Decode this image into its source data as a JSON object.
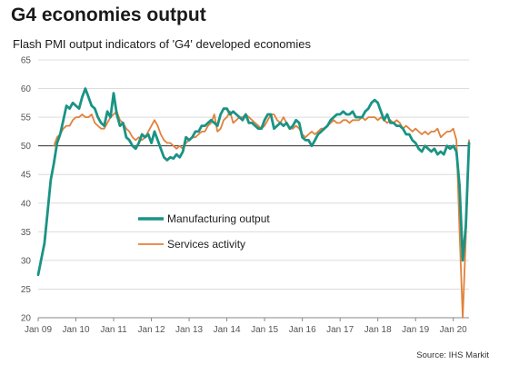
{
  "title": "G4 economies output",
  "subtitle": "Flash PMI output indicators of 'G4' developed economies",
  "source": "Source: IHS Markit",
  "chart_data": {
    "type": "line",
    "title": "G4 economies output",
    "subtitle": "Flash PMI output indicators of 'G4' developed economies",
    "ylim": [
      20,
      65
    ],
    "yticks": [
      20,
      25,
      30,
      35,
      40,
      45,
      50,
      55,
      60,
      65
    ],
    "xlim": [
      "Jan 09",
      "Jun 20"
    ],
    "xticks": [
      "Jan 09",
      "Jan 10",
      "Jan 11",
      "Jan 12",
      "Jan 13",
      "Jan 14",
      "Jan 15",
      "Jan 16",
      "Jan 17",
      "Jan 18",
      "Jan 19",
      "Jan 20"
    ],
    "reference_line": 50,
    "legend_position": "center",
    "grid": "horizontal",
    "series": [
      {
        "name": "Manufacturing output",
        "color": "#1a9384",
        "points": [
          [
            "Jan 09",
            27.5
          ],
          [
            "Mar 09",
            33.0
          ],
          [
            "Apr 09",
            38.5
          ],
          [
            "May 09",
            44.0
          ],
          [
            "Jun 09",
            47.0
          ],
          [
            "Jul 09",
            50.5
          ],
          [
            "Aug 09",
            52.0
          ],
          [
            "Sep 09",
            54.5
          ],
          [
            "Oct 09",
            57.0
          ],
          [
            "Nov 09",
            56.5
          ],
          [
            "Dec 09",
            57.5
          ],
          [
            "Jan 10",
            57.0
          ],
          [
            "Feb 10",
            56.5
          ],
          [
            "Mar 10",
            58.5
          ],
          [
            "Apr 10",
            60.0
          ],
          [
            "May 10",
            58.5
          ],
          [
            "Jun 10",
            57.0
          ],
          [
            "Jul 10",
            56.5
          ],
          [
            "Aug 10",
            55.0
          ],
          [
            "Sep 10",
            54.0
          ],
          [
            "Oct 10",
            53.5
          ],
          [
            "Nov 10",
            56.0
          ],
          [
            "Dec 10",
            55.0
          ],
          [
            "Jan 11",
            59.2
          ],
          [
            "Feb 11",
            55.5
          ],
          [
            "Mar 11",
            53.5
          ],
          [
            "Apr 11",
            54.0
          ],
          [
            "May 11",
            51.5
          ],
          [
            "Jun 11",
            51.0
          ],
          [
            "Jul 11",
            50.0
          ],
          [
            "Aug 11",
            49.5
          ],
          [
            "Sep 11",
            50.5
          ],
          [
            "Oct 11",
            52.0
          ],
          [
            "Nov 11",
            51.5
          ],
          [
            "Dec 11",
            52.0
          ],
          [
            "Jan 12",
            50.5
          ],
          [
            "Feb 12",
            52.5
          ],
          [
            "Mar 12",
            51.0
          ],
          [
            "Apr 12",
            49.5
          ],
          [
            "May 12",
            48.0
          ],
          [
            "Jun 12",
            47.5
          ],
          [
            "Jul 12",
            48.0
          ],
          [
            "Aug 12",
            47.8
          ],
          [
            "Sep 12",
            48.5
          ],
          [
            "Oct 12",
            48.0
          ],
          [
            "Nov 12",
            49.0
          ],
          [
            "Dec 12",
            51.5
          ],
          [
            "Jan 13",
            51.0
          ],
          [
            "Feb 13",
            51.5
          ],
          [
            "Mar 13",
            52.5
          ],
          [
            "Apr 13",
            52.5
          ],
          [
            "May 13",
            53.5
          ],
          [
            "Jun 13",
            53.5
          ],
          [
            "Jul 13",
            54.0
          ],
          [
            "Aug 13",
            54.5
          ],
          [
            "Sep 13",
            54.0
          ],
          [
            "Oct 13",
            53.5
          ],
          [
            "Nov 13",
            55.5
          ],
          [
            "Dec 13",
            56.5
          ],
          [
            "Jan 14",
            56.5
          ],
          [
            "Feb 14",
            55.5
          ],
          [
            "Mar 14",
            56.0
          ],
          [
            "Apr 14",
            55.5
          ],
          [
            "May 14",
            55.0
          ],
          [
            "Jun 14",
            54.5
          ],
          [
            "Jul 14",
            55.5
          ],
          [
            "Aug 14",
            54.0
          ],
          [
            "Sep 14",
            54.0
          ],
          [
            "Oct 14",
            53.5
          ],
          [
            "Nov 14",
            53.0
          ],
          [
            "Dec 14",
            53.0
          ],
          [
            "Jan 15",
            54.5
          ],
          [
            "Feb 15",
            55.5
          ],
          [
            "Mar 15",
            55.5
          ],
          [
            "Apr 15",
            53.0
          ],
          [
            "May 15",
            53.5
          ],
          [
            "Jun 15",
            54.0
          ],
          [
            "Jul 15",
            53.5
          ],
          [
            "Aug 15",
            54.0
          ],
          [
            "Sep 15",
            53.0
          ],
          [
            "Oct 15",
            53.5
          ],
          [
            "Nov 15",
            54.5
          ],
          [
            "Dec 15",
            54.0
          ],
          [
            "Jan 16",
            51.5
          ],
          [
            "Feb 16",
            51.0
          ],
          [
            "Mar 16",
            51.0
          ],
          [
            "Apr 16",
            50.0
          ],
          [
            "May 16",
            51.0
          ],
          [
            "Jun 16",
            52.0
          ],
          [
            "Jul 16",
            52.5
          ],
          [
            "Aug 16",
            53.0
          ],
          [
            "Sep 16",
            53.5
          ],
          [
            "Oct 16",
            54.5
          ],
          [
            "Nov 16",
            55.0
          ],
          [
            "Dec 16",
            55.5
          ],
          [
            "Jan 17",
            55.5
          ],
          [
            "Feb 17",
            56.0
          ],
          [
            "Mar 17",
            55.5
          ],
          [
            "Apr 17",
            55.5
          ],
          [
            "May 17",
            56.0
          ],
          [
            "Jun 17",
            55.0
          ],
          [
            "Jul 17",
            55.0
          ],
          [
            "Aug 17",
            55.0
          ],
          [
            "Sep 17",
            56.0
          ],
          [
            "Oct 17",
            56.5
          ],
          [
            "Nov 17",
            57.5
          ],
          [
            "Dec 17",
            58.0
          ],
          [
            "Jan 18",
            57.5
          ],
          [
            "Feb 18",
            56.0
          ],
          [
            "Mar 18",
            54.5
          ],
          [
            "Apr 18",
            55.5
          ],
          [
            "May 18",
            54.0
          ],
          [
            "Jun 18",
            54.0
          ],
          [
            "Jul 18",
            53.5
          ],
          [
            "Aug 18",
            53.5
          ],
          [
            "Sep 18",
            53.0
          ],
          [
            "Oct 18",
            52.0
          ],
          [
            "Nov 18",
            52.0
          ],
          [
            "Dec 18",
            51.0
          ],
          [
            "Jan 19",
            50.5
          ],
          [
            "Feb 19",
            49.5
          ],
          [
            "Mar 19",
            49.0
          ],
          [
            "Apr 19",
            50.0
          ],
          [
            "May 19",
            49.5
          ],
          [
            "Jun 19",
            49.0
          ],
          [
            "Jul 19",
            49.5
          ],
          [
            "Aug 19",
            48.5
          ],
          [
            "Sep 19",
            49.0
          ],
          [
            "Oct 19",
            48.5
          ],
          [
            "Nov 19",
            50.0
          ],
          [
            "Dec 19",
            49.5
          ],
          [
            "Jan 20",
            50.0
          ],
          [
            "Feb 20",
            49.0
          ],
          [
            "Mar 20",
            43.0
          ],
          [
            "Apr 20",
            30.0
          ],
          [
            "May 20",
            36.0
          ],
          [
            "Jun 20",
            50.5
          ]
        ]
      },
      {
        "name": "Services activity",
        "color": "#e2813a",
        "points": [
          [
            "Jun 09",
            50.0
          ],
          [
            "Jul 09",
            51.5
          ],
          [
            "Aug 09",
            52.0
          ],
          [
            "Sep 09",
            53.0
          ],
          [
            "Oct 09",
            53.5
          ],
          [
            "Nov 09",
            53.5
          ],
          [
            "Dec 09",
            54.5
          ],
          [
            "Jan 10",
            55.0
          ],
          [
            "Feb 10",
            55.0
          ],
          [
            "Mar 10",
            55.5
          ],
          [
            "Apr 10",
            55.0
          ],
          [
            "May 10",
            55.0
          ],
          [
            "Jun 10",
            55.5
          ],
          [
            "Jul 10",
            54.0
          ],
          [
            "Aug 10",
            53.5
          ],
          [
            "Sep 10",
            53.0
          ],
          [
            "Oct 10",
            53.0
          ],
          [
            "Nov 10",
            54.0
          ],
          [
            "Dec 10",
            55.0
          ],
          [
            "Jan 11",
            55.5
          ],
          [
            "Feb 11",
            56.0
          ],
          [
            "Mar 11",
            54.5
          ],
          [
            "Apr 11",
            54.0
          ],
          [
            "May 11",
            53.0
          ],
          [
            "Jun 11",
            52.5
          ],
          [
            "Jul 11",
            51.5
          ],
          [
            "Aug 11",
            51.0
          ],
          [
            "Sep 11",
            51.5
          ],
          [
            "Oct 11",
            51.0
          ],
          [
            "Nov 11",
            51.5
          ],
          [
            "Dec 11",
            52.5
          ],
          [
            "Jan 12",
            53.5
          ],
          [
            "Feb 12",
            54.5
          ],
          [
            "Mar 12",
            53.5
          ],
          [
            "Apr 12",
            52.0
          ],
          [
            "May 12",
            51.0
          ],
          [
            "Jun 12",
            50.5
          ],
          [
            "Jul 12",
            50.5
          ],
          [
            "Aug 12",
            50.0
          ],
          [
            "Sep 12",
            49.5
          ],
          [
            "Oct 12",
            50.0
          ],
          [
            "Nov 12",
            49.5
          ],
          [
            "Dec 12",
            50.5
          ],
          [
            "Jan 13",
            51.0
          ],
          [
            "Feb 13",
            51.5
          ],
          [
            "Mar 13",
            51.5
          ],
          [
            "Apr 13",
            52.0
          ],
          [
            "May 13",
            52.5
          ],
          [
            "Jun 13",
            52.5
          ],
          [
            "Jul 13",
            53.5
          ],
          [
            "Aug 13",
            54.0
          ],
          [
            "Sep 13",
            55.5
          ],
          [
            "Oct 13",
            52.5
          ],
          [
            "Nov 13",
            53.0
          ],
          [
            "Dec 13",
            54.5
          ],
          [
            "Jan 14",
            55.0
          ],
          [
            "Feb 14",
            56.0
          ],
          [
            "Mar 14",
            54.0
          ],
          [
            "Apr 14",
            54.5
          ],
          [
            "May 14",
            55.0
          ],
          [
            "Jun 14",
            55.0
          ],
          [
            "Jul 14",
            55.5
          ],
          [
            "Aug 14",
            55.0
          ],
          [
            "Sep 14",
            54.5
          ],
          [
            "Oct 14",
            54.0
          ],
          [
            "Nov 14",
            53.5
          ],
          [
            "Dec 14",
            53.0
          ],
          [
            "Jan 15",
            53.5
          ],
          [
            "Feb 15",
            54.5
          ],
          [
            "Mar 15",
            55.5
          ],
          [
            "Apr 15",
            55.5
          ],
          [
            "May 15",
            54.5
          ],
          [
            "Jun 15",
            54.0
          ],
          [
            "Jul 15",
            55.0
          ],
          [
            "Aug 15",
            54.0
          ],
          [
            "Sep 15",
            53.0
          ],
          [
            "Oct 15",
            53.0
          ],
          [
            "Nov 15",
            53.5
          ],
          [
            "Dec 15",
            53.0
          ],
          [
            "Jan 16",
            52.0
          ],
          [
            "Feb 16",
            51.5
          ],
          [
            "Mar 16",
            52.0
          ],
          [
            "Apr 16",
            52.5
          ],
          [
            "May 16",
            52.0
          ],
          [
            "Jun 16",
            52.5
          ],
          [
            "Jul 16",
            53.0
          ],
          [
            "Aug 16",
            53.0
          ],
          [
            "Sep 16",
            53.5
          ],
          [
            "Oct 16",
            54.0
          ],
          [
            "Nov 16",
            54.5
          ],
          [
            "Dec 16",
            54.0
          ],
          [
            "Jan 17",
            54.0
          ],
          [
            "Feb 17",
            54.5
          ],
          [
            "Mar 17",
            54.5
          ],
          [
            "Apr 17",
            54.0
          ],
          [
            "May 17",
            54.5
          ],
          [
            "Jun 17",
            54.5
          ],
          [
            "Jul 17",
            54.5
          ],
          [
            "Aug 17",
            55.0
          ],
          [
            "Sep 17",
            54.5
          ],
          [
            "Oct 17",
            55.0
          ],
          [
            "Nov 17",
            55.0
          ],
          [
            "Dec 17",
            55.0
          ],
          [
            "Jan 18",
            54.5
          ],
          [
            "Feb 18",
            55.0
          ],
          [
            "Mar 18",
            54.5
          ],
          [
            "Apr 18",
            54.0
          ],
          [
            "May 18",
            54.5
          ],
          [
            "Jun 18",
            54.0
          ],
          [
            "Jul 18",
            54.5
          ],
          [
            "Aug 18",
            54.0
          ],
          [
            "Sep 18",
            53.0
          ],
          [
            "Oct 18",
            53.5
          ],
          [
            "Nov 18",
            53.0
          ],
          [
            "Dec 18",
            52.5
          ],
          [
            "Jan 19",
            53.0
          ],
          [
            "Feb 19",
            52.5
          ],
          [
            "Mar 19",
            52.0
          ],
          [
            "Apr 19",
            52.5
          ],
          [
            "May 19",
            52.0
          ],
          [
            "Jun 19",
            52.5
          ],
          [
            "Jul 19",
            52.5
          ],
          [
            "Aug 19",
            53.0
          ],
          [
            "Sep 19",
            51.5
          ],
          [
            "Oct 19",
            52.0
          ],
          [
            "Nov 19",
            52.5
          ],
          [
            "Dec 19",
            52.5
          ],
          [
            "Jan 20",
            53.0
          ],
          [
            "Feb 20",
            51.0
          ],
          [
            "Mar 20",
            35.0
          ],
          [
            "Apr 20",
            20.0
          ],
          [
            "May 20",
            34.0
          ],
          [
            "Jun 20",
            51.0
          ]
        ]
      }
    ]
  }
}
